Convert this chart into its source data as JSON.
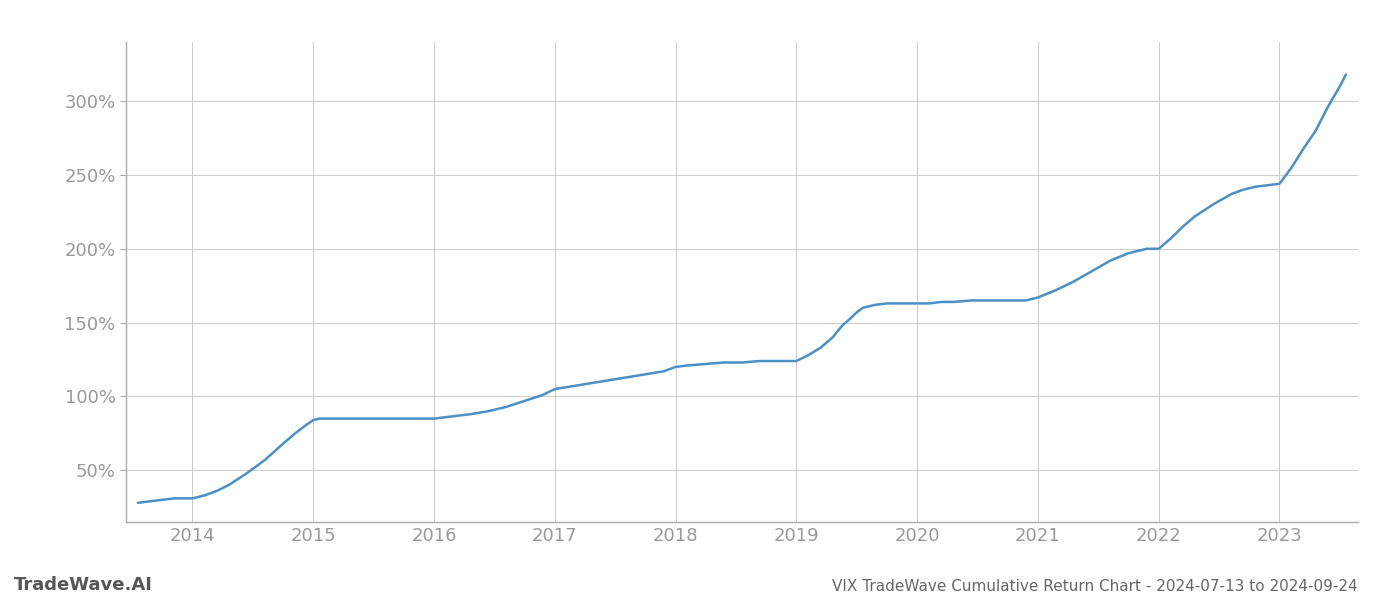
{
  "title": "VIX TradeWave Cumulative Return Chart - 2024-07-13 to 2024-09-24",
  "watermark": "TradeWave.AI",
  "line_color": "#4a90c4",
  "background_color": "#ffffff",
  "grid_color": "#cccccc",
  "x_values": [
    2013.55,
    2013.65,
    2013.75,
    2013.85,
    2013.95,
    2014.0,
    2014.1,
    2014.2,
    2014.3,
    2014.45,
    2014.6,
    2014.75,
    2014.85,
    2014.93,
    2015.0,
    2015.05,
    2015.08,
    2015.15,
    2015.25,
    2015.4,
    2015.55,
    2015.7,
    2015.85,
    2016.0,
    2016.1,
    2016.2,
    2016.3,
    2016.45,
    2016.6,
    2016.75,
    2016.9,
    2017.0,
    2017.15,
    2017.3,
    2017.45,
    2017.6,
    2017.75,
    2017.9,
    2018.0,
    2018.1,
    2018.25,
    2018.4,
    2018.55,
    2018.7,
    2018.85,
    2019.0,
    2019.1,
    2019.2,
    2019.3,
    2019.38,
    2019.45,
    2019.5,
    2019.55,
    2019.65,
    2019.75,
    2019.85,
    2019.95,
    2020.0,
    2020.1,
    2020.2,
    2020.3,
    2020.45,
    2020.6,
    2020.75,
    2020.9,
    2021.0,
    2021.15,
    2021.3,
    2021.45,
    2021.6,
    2021.75,
    2021.9,
    2022.0,
    2022.1,
    2022.2,
    2022.3,
    2022.45,
    2022.6,
    2022.7,
    2022.8,
    2022.9,
    2023.0,
    2023.1,
    2023.2,
    2023.3,
    2023.4,
    2023.5,
    2023.55
  ],
  "y_values": [
    28,
    29,
    30,
    31,
    31,
    31,
    33,
    36,
    40,
    48,
    57,
    68,
    75,
    80,
    84,
    85,
    85,
    85,
    85,
    85,
    85,
    85,
    85,
    85,
    86,
    87,
    88,
    90,
    93,
    97,
    101,
    105,
    107,
    109,
    111,
    113,
    115,
    117,
    120,
    121,
    122,
    123,
    123,
    124,
    124,
    124,
    128,
    133,
    140,
    148,
    153,
    157,
    160,
    162,
    163,
    163,
    163,
    163,
    163,
    164,
    164,
    165,
    165,
    165,
    165,
    167,
    172,
    178,
    185,
    192,
    197,
    200,
    200,
    207,
    215,
    222,
    230,
    237,
    240,
    242,
    243,
    244,
    255,
    268,
    280,
    296,
    310,
    318
  ],
  "xlim": [
    2013.45,
    2023.65
  ],
  "ylim": [
    15,
    340
  ],
  "yticks": [
    50,
    100,
    150,
    200,
    250,
    300
  ],
  "xticks": [
    2014,
    2015,
    2016,
    2017,
    2018,
    2019,
    2020,
    2021,
    2022,
    2023
  ],
  "tick_label_color": "#999999",
  "axis_line_color": "#aaaaaa",
  "title_color": "#666666",
  "watermark_color": "#555555",
  "title_fontsize": 11,
  "watermark_fontsize": 13,
  "tick_fontsize": 13,
  "line_width": 1.8
}
